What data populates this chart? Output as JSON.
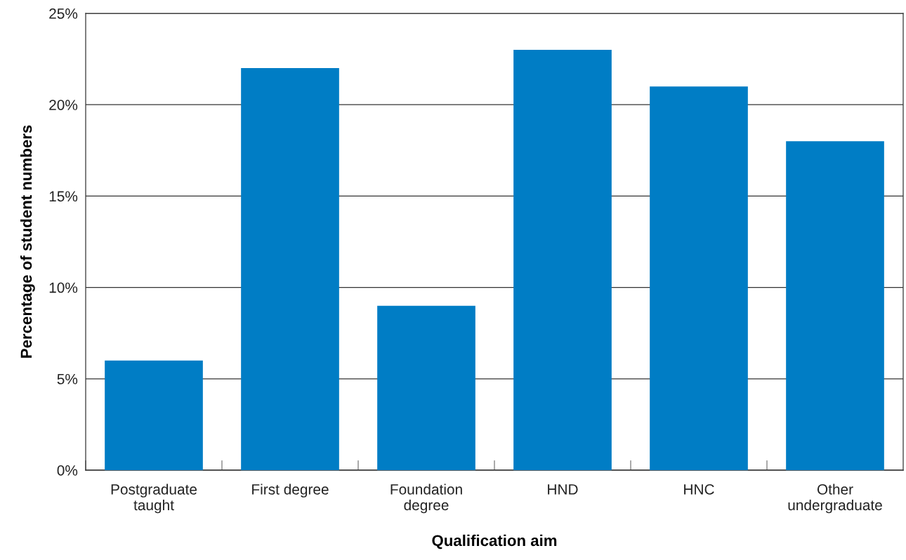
{
  "chart_data": {
    "type": "bar",
    "xlabel": "Qualification aim",
    "ylabel": "Percentage of student numbers",
    "categories": [
      "Postgraduate\ntaught",
      "First degree",
      "Foundation\ndegree",
      "HND",
      "HNC",
      "Other\nundergraduate"
    ],
    "values": [
      6,
      22,
      9,
      23,
      21,
      18
    ],
    "color": "#007dc5",
    "ylim": [
      0,
      25
    ],
    "yticks": [
      {
        "value": 0,
        "label": "0%"
      },
      {
        "value": 5,
        "label": "5%"
      },
      {
        "value": 10,
        "label": "10%"
      },
      {
        "value": 15,
        "label": "15%"
      },
      {
        "value": 20,
        "label": "20%"
      },
      {
        "value": 25,
        "label": "25%"
      }
    ],
    "grid": "y",
    "legend": false
  }
}
